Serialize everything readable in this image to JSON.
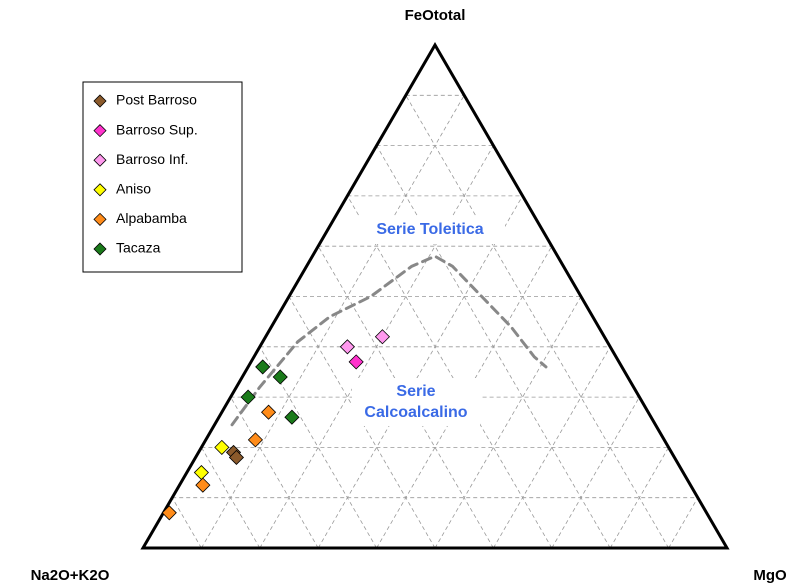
{
  "chart_data": {
    "type": "ternary",
    "axes": [
      "Na2O+K2O",
      "FeOtotal",
      "MgO"
    ],
    "grid": true,
    "ticks": [
      10,
      20,
      30,
      40,
      50,
      60,
      70,
      80,
      90
    ],
    "series": [
      {
        "name": "Post Barroso",
        "color": "#8b5a2b",
        "values": [
          [
            75,
            19,
            6
          ],
          [
            75,
            18,
            7
          ]
        ]
      },
      {
        "name": "Barroso Sup.",
        "color": "#ff33cc",
        "values": [
          [
            45,
            37,
            18
          ]
        ]
      },
      {
        "name": "Barroso Inf.",
        "color": "#ff99ee",
        "values": [
          [
            45,
            40,
            15
          ],
          [
            38,
            42,
            20
          ]
        ]
      },
      {
        "name": "Aniso",
        "color": "#ffff00",
        "values": [
          [
            76.5,
            20,
            3.5
          ],
          [
            82.5,
            15,
            2.5
          ]
        ]
      },
      {
        "name": "Alpabamba",
        "color": "#ff8c1a",
        "values": [
          [
            92,
            7,
            1
          ],
          [
            83.5,
            12.5,
            4
          ],
          [
            70,
            21.5,
            8.5
          ],
          [
            65,
            27,
            8
          ]
        ]
      },
      {
        "name": "Tacaza",
        "color": "#1a7a1a",
        "values": [
          [
            61.5,
            36,
            2.5
          ],
          [
            59.5,
            34,
            6.5
          ],
          [
            67,
            30,
            3
          ],
          [
            61.5,
            26,
            12.5
          ]
        ]
      }
    ],
    "boundary": [
      [
        72.5,
        24.5,
        3
      ],
      [
        64,
        32,
        4
      ],
      [
        53,
        41,
        6
      ],
      [
        45,
        46,
        9
      ],
      [
        36,
        50,
        14
      ],
      [
        26,
        56,
        18
      ],
      [
        21,
        58,
        21
      ],
      [
        19,
        56,
        25
      ],
      [
        17,
        50,
        33
      ],
      [
        15,
        44,
        41
      ],
      [
        14,
        38,
        48
      ],
      [
        13,
        36,
        51
      ]
    ],
    "annotations": [
      "Serie Toleitica",
      "Serie",
      "Calcoalcalino"
    ]
  }
}
